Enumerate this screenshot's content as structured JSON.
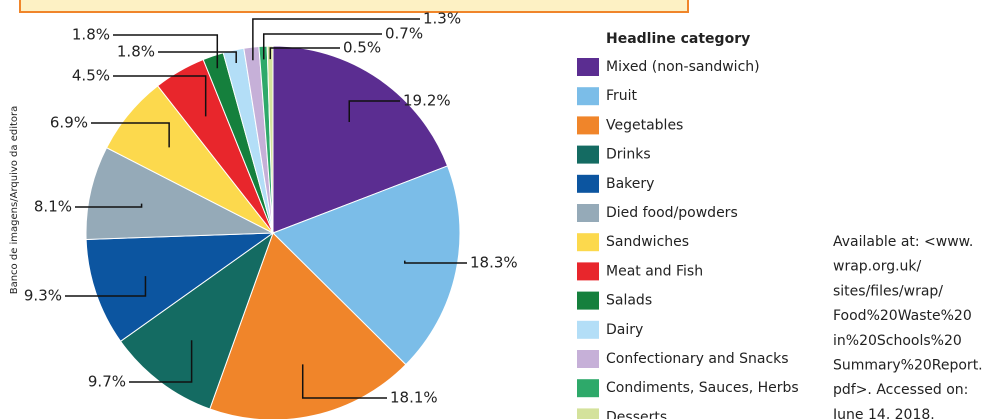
{
  "chart_data": {
    "type": "pie",
    "legend_title": "Headline category",
    "categories": [
      "Mixed (non-sandwich)",
      "Fruit",
      "Vegetables",
      "Drinks",
      "Bakery",
      "Died food/powders",
      "Sandwiches",
      "Meat and Fish",
      "Salads",
      "Dairy",
      "Confectionary and Snacks",
      "Condiments, Sauces, Herbs",
      "Desserts"
    ],
    "values": [
      19.2,
      18.3,
      18.1,
      9.7,
      9.3,
      8.1,
      6.9,
      4.5,
      1.8,
      1.8,
      1.3,
      0.7,
      0.5
    ],
    "value_labels": [
      "19.2%",
      "18.3%",
      "18.1%",
      "9.7%",
      "9.3%",
      "8.1%",
      "6.9%",
      "4.5%",
      "1.8%",
      "1.8%",
      "1.3%",
      "0.7%",
      "0.5%"
    ],
    "colors": [
      "#5b2d91",
      "#7bbde8",
      "#f0852a",
      "#146b62",
      "#0c55a0",
      "#95aab8",
      "#fcd94d",
      "#e8262c",
      "#15803d",
      "#b3def7",
      "#c6b0d8",
      "#2ea96a",
      "#d4e29c"
    ],
    "credit": "Banco de imagens/Arquivo da editora",
    "source": [
      "Available at: <www.",
      "wrap.org.uk/",
      "sites/files/wrap/",
      "Food%20Waste%20",
      "in%20Schools%20",
      "Summary%20Report.",
      "pdf>. Accessed on:",
      "June 14, 2018."
    ]
  }
}
